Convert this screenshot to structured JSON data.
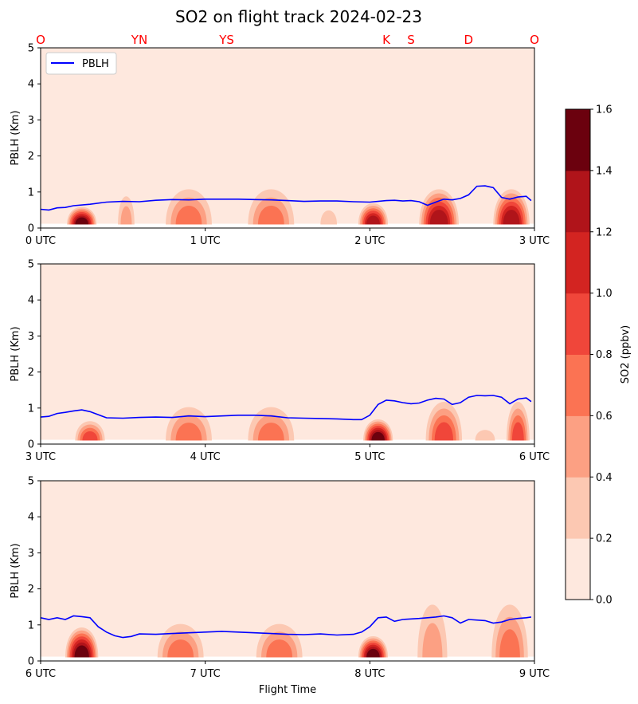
{
  "chart_data": {
    "type": "contour",
    "title": "SO2 on flight track 2024-02-23",
    "xlabel": "Flight Time",
    "ylabel": "PBLH (Km)",
    "ylim": [
      0,
      5
    ],
    "yticks": [
      "0",
      "1",
      "2",
      "3",
      "4",
      "5"
    ],
    "legend": {
      "label": "PBLH",
      "color": "#0000ff",
      "placement": "upper-left"
    },
    "site_labels": [
      {
        "label": "O",
        "x": 0.0
      },
      {
        "label": "YN",
        "x": 0.6
      },
      {
        "label": "YS",
        "x": 1.13
      },
      {
        "label": "K",
        "x": 2.1
      },
      {
        "label": "S",
        "x": 2.25
      },
      {
        "label": "D",
        "x": 2.6
      },
      {
        "label": "O",
        "x": 3.0
      }
    ],
    "site_label_color": "#ff0000",
    "colorbar": {
      "label": "SO2 (ppbv)",
      "levels": [
        0.0,
        0.2,
        0.4,
        0.6,
        0.8,
        1.0,
        1.2,
        1.4,
        1.6
      ],
      "tick_labels": [
        "0.0",
        "0.2",
        "0.4",
        "0.6",
        "0.8",
        "1.0",
        "1.2",
        "1.4",
        "1.6"
      ],
      "colors": [
        "#fee8de",
        "#fcc8b2",
        "#fca083",
        "#fb7353",
        "#f0463a",
        "#d32421",
        "#b0141a",
        "#6b010e"
      ]
    },
    "panels": [
      {
        "xlim": [
          0,
          3
        ],
        "xtick_labels": [
          "0 UTC",
          "1 UTC",
          "2 UTC",
          "3 UTC"
        ],
        "pblh": {
          "x": [
            0.0,
            0.05,
            0.1,
            0.15,
            0.2,
            0.3,
            0.4,
            0.5,
            0.6,
            0.7,
            0.8,
            0.9,
            1.0,
            1.1,
            1.2,
            1.3,
            1.4,
            1.5,
            1.6,
            1.7,
            1.8,
            1.9,
            2.0,
            2.1,
            2.15,
            2.2,
            2.25,
            2.3,
            2.35,
            2.4,
            2.45,
            2.5,
            2.55,
            2.6,
            2.65,
            2.7,
            2.75,
            2.8,
            2.85,
            2.9,
            2.95,
            2.98
          ],
          "y": [
            0.52,
            0.5,
            0.56,
            0.57,
            0.62,
            0.66,
            0.72,
            0.74,
            0.73,
            0.77,
            0.79,
            0.78,
            0.8,
            0.8,
            0.8,
            0.79,
            0.78,
            0.76,
            0.74,
            0.75,
            0.75,
            0.73,
            0.72,
            0.76,
            0.77,
            0.75,
            0.76,
            0.73,
            0.63,
            0.72,
            0.8,
            0.78,
            0.82,
            0.92,
            1.16,
            1.17,
            1.12,
            0.85,
            0.8,
            0.86,
            0.88,
            0.76
          ]
        },
        "blobs": [
          {
            "x": 0.25,
            "w": 0.18,
            "h": 0.5,
            "peak": 1.5
          },
          {
            "x": 0.52,
            "w": 0.1,
            "h": 0.8,
            "peak": 0.6
          },
          {
            "x": 0.9,
            "w": 0.28,
            "h": 1.0,
            "peak": 0.8
          },
          {
            "x": 1.4,
            "w": 0.28,
            "h": 1.0,
            "peak": 0.8
          },
          {
            "x": 1.75,
            "w": 0.1,
            "h": 0.4,
            "peak": 0.3
          },
          {
            "x": 2.02,
            "w": 0.18,
            "h": 0.6,
            "peak": 1.4
          },
          {
            "x": 2.42,
            "w": 0.24,
            "h": 1.0,
            "peak": 1.3
          },
          {
            "x": 2.86,
            "w": 0.22,
            "h": 1.0,
            "peak": 1.3
          }
        ]
      },
      {
        "xlim": [
          3,
          6
        ],
        "xtick_labels": [
          "3 UTC",
          "4 UTC",
          "5 UTC",
          "6 UTC"
        ],
        "pblh": {
          "x": [
            3.0,
            3.05,
            3.1,
            3.15,
            3.2,
            3.25,
            3.3,
            3.4,
            3.5,
            3.6,
            3.7,
            3.8,
            3.9,
            4.0,
            4.1,
            4.2,
            4.3,
            4.4,
            4.5,
            4.6,
            4.7,
            4.8,
            4.9,
            4.95,
            5.0,
            5.05,
            5.1,
            5.15,
            5.2,
            5.25,
            5.3,
            5.35,
            5.4,
            5.45,
            5.5,
            5.55,
            5.6,
            5.65,
            5.7,
            5.75,
            5.8,
            5.85,
            5.9,
            5.95,
            5.98
          ],
          "y": [
            0.75,
            0.77,
            0.85,
            0.88,
            0.92,
            0.95,
            0.9,
            0.73,
            0.72,
            0.74,
            0.75,
            0.74,
            0.78,
            0.76,
            0.78,
            0.8,
            0.8,
            0.78,
            0.73,
            0.72,
            0.71,
            0.7,
            0.68,
            0.68,
            0.8,
            1.1,
            1.22,
            1.2,
            1.15,
            1.12,
            1.14,
            1.22,
            1.27,
            1.25,
            1.1,
            1.15,
            1.3,
            1.35,
            1.34,
            1.35,
            1.3,
            1.12,
            1.25,
            1.28,
            1.18
          ]
        },
        "blobs": [
          {
            "x": 3.3,
            "w": 0.18,
            "h": 0.55,
            "peak": 1.0
          },
          {
            "x": 3.9,
            "w": 0.28,
            "h": 0.95,
            "peak": 0.8
          },
          {
            "x": 4.4,
            "w": 0.28,
            "h": 0.95,
            "peak": 0.8
          },
          {
            "x": 5.05,
            "w": 0.18,
            "h": 0.6,
            "peak": 1.5
          },
          {
            "x": 5.45,
            "w": 0.22,
            "h": 1.1,
            "peak": 0.9
          },
          {
            "x": 5.7,
            "w": 0.12,
            "h": 0.3,
            "peak": 0.3
          },
          {
            "x": 5.9,
            "w": 0.14,
            "h": 1.1,
            "peak": 0.9
          }
        ]
      },
      {
        "xlim": [
          6,
          9
        ],
        "xtick_labels": [
          "6 UTC",
          "7 UTC",
          "8 UTC",
          "9 UTC"
        ],
        "pblh": {
          "x": [
            6.0,
            6.05,
            6.1,
            6.15,
            6.2,
            6.25,
            6.3,
            6.35,
            6.4,
            6.45,
            6.5,
            6.55,
            6.6,
            6.7,
            6.8,
            6.9,
            7.0,
            7.1,
            7.2,
            7.3,
            7.4,
            7.5,
            7.6,
            7.7,
            7.8,
            7.9,
            7.95,
            8.0,
            8.05,
            8.1,
            8.15,
            8.2,
            8.3,
            8.4,
            8.45,
            8.5,
            8.55,
            8.6,
            8.7,
            8.75,
            8.8,
            8.85,
            8.9,
            8.95,
            8.98
          ],
          "y": [
            1.2,
            1.15,
            1.2,
            1.15,
            1.25,
            1.23,
            1.2,
            0.95,
            0.8,
            0.7,
            0.65,
            0.68,
            0.75,
            0.74,
            0.76,
            0.78,
            0.8,
            0.82,
            0.8,
            0.78,
            0.76,
            0.74,
            0.73,
            0.75,
            0.72,
            0.74,
            0.8,
            0.95,
            1.2,
            1.22,
            1.1,
            1.15,
            1.18,
            1.22,
            1.25,
            1.2,
            1.05,
            1.15,
            1.12,
            1.05,
            1.08,
            1.15,
            1.18,
            1.2,
            1.22
          ]
        },
        "blobs": [
          {
            "x": 6.25,
            "w": 0.2,
            "h": 0.85,
            "peak": 1.5
          },
          {
            "x": 6.85,
            "w": 0.28,
            "h": 0.95,
            "peak": 0.8
          },
          {
            "x": 7.45,
            "w": 0.28,
            "h": 0.95,
            "peak": 0.8
          },
          {
            "x": 8.02,
            "w": 0.18,
            "h": 0.6,
            "peak": 1.5
          },
          {
            "x": 8.38,
            "w": 0.18,
            "h": 1.5,
            "peak": 0.6
          },
          {
            "x": 8.85,
            "w": 0.22,
            "h": 1.5,
            "peak": 0.7
          }
        ]
      }
    ]
  }
}
